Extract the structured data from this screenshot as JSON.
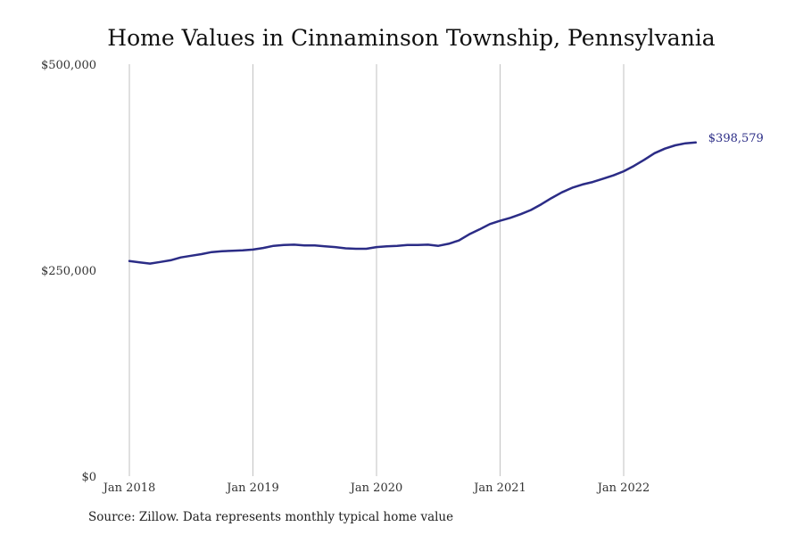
{
  "chart_data": {
    "type": "line",
    "title": "Home Values in Cinnaminson Township, Pennsylvania",
    "xlabel": "",
    "ylabel": "",
    "ylim": [
      0,
      500000
    ],
    "y_ticks": [
      "$0",
      "$250,000",
      "$500,000"
    ],
    "y_tick_values": [
      0,
      250000,
      500000
    ],
    "x_ticks": [
      "Jan 2018",
      "Jan 2019",
      "Jan 2020",
      "Jan 2021",
      "Jan 2022"
    ],
    "x_tick_dates": [
      "2018-01",
      "2019-01",
      "2020-01",
      "2021-01",
      "2022-01"
    ],
    "grid": "vertical lines at x ticks",
    "line_color": "#2b2c86",
    "end_label": "$398,579",
    "x": [
      "2018-01",
      "2018-02",
      "2018-03",
      "2018-04",
      "2018-05",
      "2018-06",
      "2018-07",
      "2018-08",
      "2018-09",
      "2018-10",
      "2018-11",
      "2018-12",
      "2019-01",
      "2019-02",
      "2019-03",
      "2019-04",
      "2019-05",
      "2019-06",
      "2019-07",
      "2019-08",
      "2019-09",
      "2019-10",
      "2019-11",
      "2019-12",
      "2020-01",
      "2020-02",
      "2020-03",
      "2020-04",
      "2020-05",
      "2020-06",
      "2020-07",
      "2020-08",
      "2020-09",
      "2020-10",
      "2020-11",
      "2020-12",
      "2021-01",
      "2021-02",
      "2021-03",
      "2021-04",
      "2021-05",
      "2021-06",
      "2021-07",
      "2021-08",
      "2021-09",
      "2021-10",
      "2021-11",
      "2021-12",
      "2022-01",
      "2022-02",
      "2022-03",
      "2022-04",
      "2022-05",
      "2022-06",
      "2022-07",
      "2022-08"
    ],
    "values": [
      261000,
      259500,
      258000,
      260000,
      262000,
      265500,
      267500,
      269500,
      272000,
      273000,
      273500,
      274000,
      275000,
      277000,
      279500,
      280500,
      281000,
      280000,
      280000,
      279000,
      278000,
      276500,
      276000,
      276000,
      278000,
      279000,
      279500,
      280500,
      280500,
      281000,
      279500,
      282000,
      286000,
      293500,
      299500,
      306000,
      310000,
      313500,
      318000,
      323000,
      330000,
      337500,
      344500,
      350000,
      354000,
      357000,
      361000,
      365000,
      370000,
      376500,
      384000,
      392000,
      397500,
      401500,
      404000,
      405000
    ]
  },
  "source": "Source: Zillow. Data represents monthly typical home value"
}
